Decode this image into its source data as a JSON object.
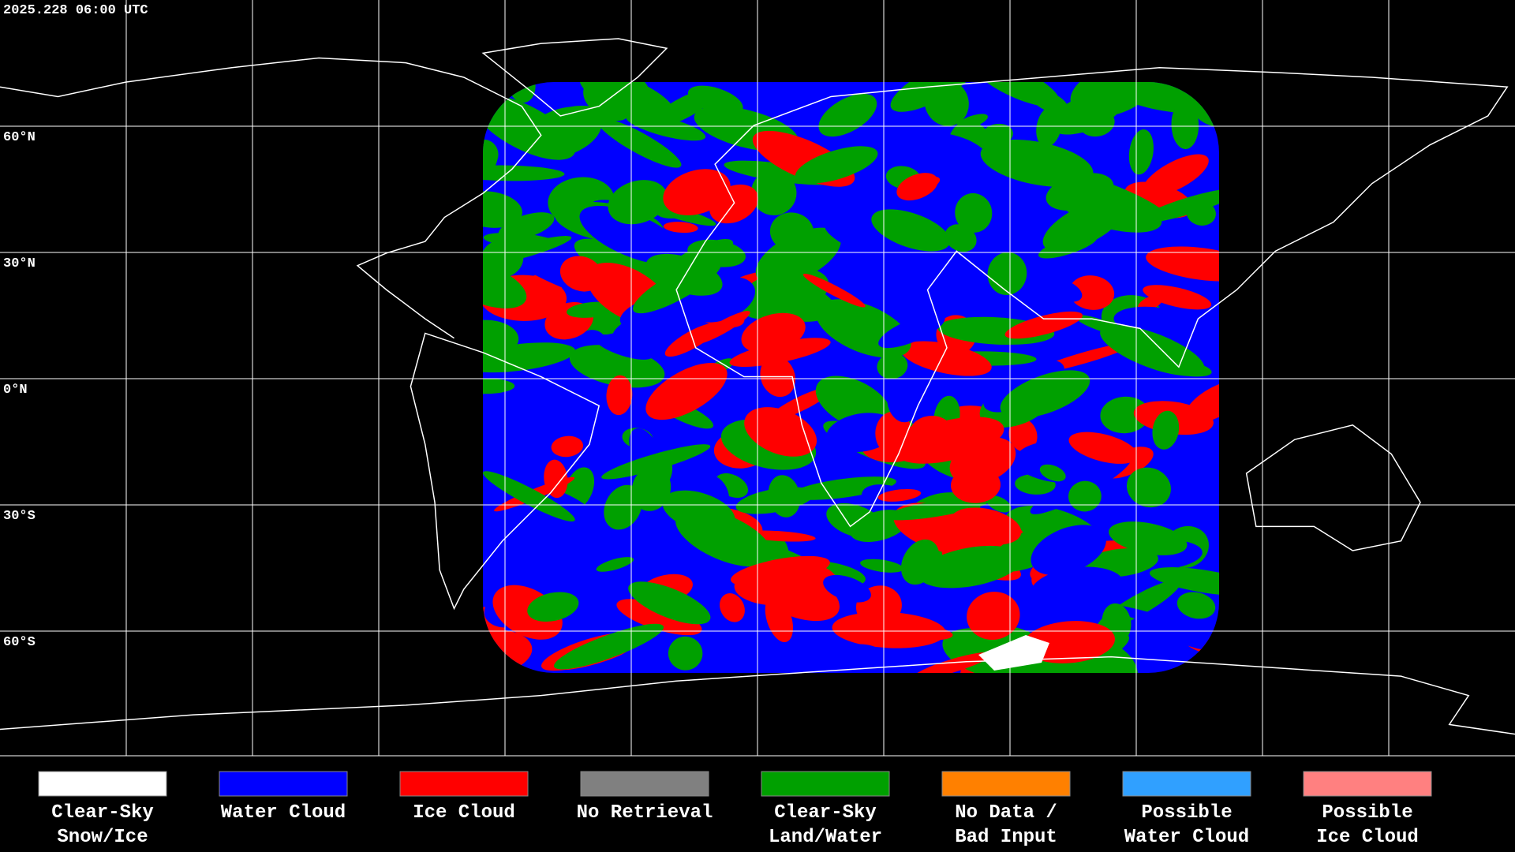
{
  "header": {
    "timestamp": "2025.228 06:00 UTC"
  },
  "latitude_labels": [
    "60°N",
    "30°N",
    "0°N",
    "30°S",
    "60°S"
  ],
  "legend": {
    "items": [
      {
        "lines": [
          "Clear-Sky",
          "Snow/Ice"
        ],
        "color": "#ffffff"
      },
      {
        "lines": [
          "Water Cloud"
        ],
        "color": "#0000ff"
      },
      {
        "lines": [
          "Ice Cloud"
        ],
        "color": "#ff0000"
      },
      {
        "lines": [
          "No Retrieval"
        ],
        "color": "#808080"
      },
      {
        "lines": [
          "Clear-Sky",
          "Land/Water"
        ],
        "color": "#00a000"
      },
      {
        "lines": [
          "No Data /",
          "Bad Input"
        ],
        "color": "#ff8000"
      },
      {
        "lines": [
          "Possible",
          "Water Cloud"
        ],
        "color": "#30a0ff"
      },
      {
        "lines": [
          "Possible",
          "Ice Cloud"
        ],
        "color": "#ff8080"
      }
    ]
  }
}
